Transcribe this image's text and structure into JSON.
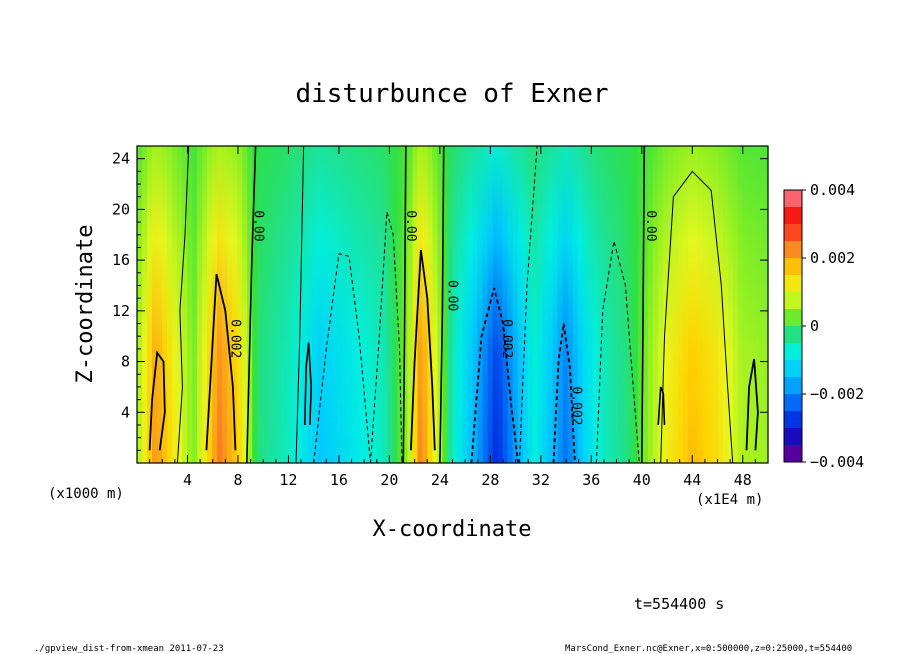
{
  "chart_data": {
    "type": "heatmap",
    "title": "disturbunce of Exner",
    "xlabel": "X-coordinate",
    "ylabel": "Z-coordinate",
    "x_unit_label": "(x1000 m)",
    "x_unit_label_right": "(x1E4 m)",
    "xlim": [
      0,
      50
    ],
    "ylim": [
      0,
      25
    ],
    "x_ticks": [
      "4",
      "8",
      "12",
      "16",
      "20",
      "24",
      "28",
      "32",
      "36",
      "40",
      "44",
      "48"
    ],
    "y_ticks": [
      "4",
      "8",
      "12",
      "16",
      "20",
      "24"
    ],
    "color_range": [
      -0.004,
      0.004
    ],
    "colorbar_labels": [
      "0.004",
      "0.002",
      "0",
      "−0.002",
      "−0.004"
    ],
    "contour_labels": [
      {
        "text": "0.00",
        "x": 9.3,
        "z": 18.7
      },
      {
        "text": "0.00",
        "x": 21.4,
        "z": 18.7
      },
      {
        "text": "0.00",
        "x": 24.7,
        "z": 13.2
      },
      {
        "text": "0.00",
        "x": 40.4,
        "z": 18.7
      },
      {
        "text": "0.002",
        "x": 7.5,
        "z": 9.8
      },
      {
        "text": "0.002",
        "x": 29.0,
        "z": 9.8
      },
      {
        "text": "0.002",
        "x": 34.5,
        "z": 4.5
      }
    ],
    "columns": [
      {
        "x": 0.0,
        "v": 0.0005
      },
      {
        "x": 1.5,
        "v": 0.0022
      },
      {
        "x": 3.0,
        "v": 0.0012
      },
      {
        "x": 4.5,
        "v": 0.0003
      },
      {
        "x": 6.5,
        "v": 0.0024
      },
      {
        "x": 8.0,
        "v": 0.0016
      },
      {
        "x": 9.5,
        "v": -0.0002
      },
      {
        "x": 12.0,
        "v": -0.0006
      },
      {
        "x": 14.5,
        "v": -0.0014
      },
      {
        "x": 17.0,
        "v": -0.001
      },
      {
        "x": 19.5,
        "v": -0.0006
      },
      {
        "x": 21.5,
        "v": 0.0005
      },
      {
        "x": 22.5,
        "v": 0.0024
      },
      {
        "x": 23.5,
        "v": 0.0012
      },
      {
        "x": 25.0,
        "v": -0.0006
      },
      {
        "x": 27.0,
        "v": -0.0018
      },
      {
        "x": 28.5,
        "v": -0.0029
      },
      {
        "x": 30.0,
        "v": -0.0018
      },
      {
        "x": 31.5,
        "v": -0.0008
      },
      {
        "x": 33.0,
        "v": -0.0016
      },
      {
        "x": 34.0,
        "v": -0.0022
      },
      {
        "x": 35.5,
        "v": -0.0012
      },
      {
        "x": 37.0,
        "v": -0.0006
      },
      {
        "x": 39.0,
        "v": -0.0002
      },
      {
        "x": 40.5,
        "v": 0.0004
      },
      {
        "x": 42.0,
        "v": 0.0012
      },
      {
        "x": 44.0,
        "v": 0.0018
      },
      {
        "x": 46.0,
        "v": 0.0014
      },
      {
        "x": 48.0,
        "v": 0.0006
      },
      {
        "x": 50.0,
        "v": 0.0005
      }
    ]
  },
  "footer": {
    "time": "t=554400 s",
    "left": "./gpview_dist-from-xmean  2011-07-23",
    "right": "MarsCond_Exner.nc@Exner,x=0:500000,z=0:25000,t=554400"
  }
}
